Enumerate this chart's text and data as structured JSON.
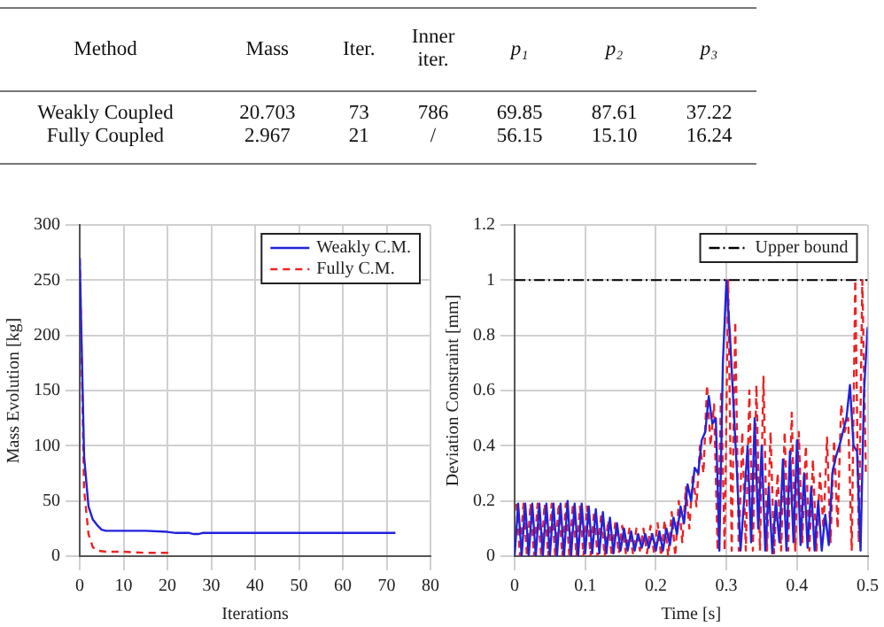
{
  "chart_data": [
    {
      "type": "other",
      "annotations": [
        "Method",
        "Mass",
        "Iter.",
        "Inner iter.",
        "p₁",
        "p₂",
        "p₃",
        "Weakly Coupled",
        "20.703",
        "73",
        "786",
        "69.85",
        "87.61",
        "37.22",
        "Fully Coupled",
        "2.967",
        "21",
        "/",
        "56.15",
        "15.10",
        "16.24"
      ]
    },
    {
      "type": "line",
      "xlabel": "Iterations",
      "ylabel": "Mass Evolution [kg]",
      "xlim": [
        0,
        80
      ],
      "ylim": [
        0,
        300
      ],
      "xticks": [
        0,
        10,
        20,
        30,
        40,
        50,
        60,
        70,
        80
      ],
      "yticks": [
        0,
        50,
        100,
        150,
        200,
        250,
        300
      ],
      "grid": true,
      "legend": "top right",
      "series": [
        {
          "name": "Weakly C.M.",
          "color": "#2222dd",
          "line_style": "solid",
          "x": [
            0,
            1,
            2,
            3,
            4,
            5,
            6,
            10,
            15,
            20,
            22,
            25,
            26,
            27,
            28,
            30,
            40,
            50,
            60,
            72
          ],
          "values": [
            270,
            90,
            45,
            33,
            28,
            24,
            23,
            23,
            23,
            22,
            21,
            21,
            20,
            20,
            21,
            21,
            21,
            21,
            21,
            21
          ]
        },
        {
          "name": "Fully C.M.",
          "color": "#ee2222",
          "line_style": "dashed",
          "x": [
            0,
            1,
            2,
            3,
            4,
            6,
            10,
            15,
            20,
            21
          ],
          "values": [
            270,
            60,
            20,
            8,
            5,
            4,
            4,
            3,
            3,
            3
          ]
        }
      ]
    },
    {
      "type": "line",
      "xlabel": "Time [s]",
      "ylabel": "Deviation Constraint [mm]",
      "xlim": [
        0,
        0.5
      ],
      "ylim": [
        0,
        1.2
      ],
      "xticks": [
        0,
        0.1,
        0.2,
        0.3,
        0.4,
        0.5
      ],
      "yticks": [
        0,
        0.2,
        0.4,
        0.6,
        0.8,
        1,
        1.2
      ],
      "grid": true,
      "legend": "top right",
      "ref_lines": [
        {
          "axis": "y",
          "value": 1,
          "label": "Upper bound",
          "color": "#000000",
          "line_style": "dashdot"
        }
      ],
      "series": [
        {
          "color": "#2222dd",
          "line_style": "solid",
          "x": [
            0,
            0.005,
            0.01,
            0.015,
            0.02,
            0.025,
            0.03,
            0.035,
            0.04,
            0.045,
            0.05,
            0.055,
            0.06,
            0.065,
            0.07,
            0.075,
            0.08,
            0.085,
            0.09,
            0.095,
            0.1,
            0.105,
            0.11,
            0.115,
            0.12,
            0.125,
            0.13,
            0.135,
            0.14,
            0.145,
            0.15,
            0.155,
            0.16,
            0.165,
            0.17,
            0.175,
            0.18,
            0.185,
            0.19,
            0.195,
            0.2,
            0.205,
            0.21,
            0.215,
            0.22,
            0.225,
            0.23,
            0.235,
            0.24,
            0.245,
            0.25,
            0.255,
            0.26,
            0.265,
            0.27,
            0.275,
            0.28,
            0.285,
            0.29,
            0.295,
            0.3,
            0.305,
            0.31,
            0.315,
            0.32,
            0.325,
            0.33,
            0.335,
            0.34,
            0.345,
            0.35,
            0.355,
            0.36,
            0.365,
            0.37,
            0.375,
            0.38,
            0.385,
            0.39,
            0.395,
            0.4,
            0.405,
            0.41,
            0.415,
            0.42,
            0.425,
            0.43,
            0.435,
            0.44,
            0.445,
            0.45,
            0.455,
            0.46,
            0.465,
            0.47,
            0.475,
            0.48,
            0.485,
            0.49,
            0.495,
            0.5
          ],
          "values": [
            0,
            0.19,
            0,
            0.19,
            0,
            0.19,
            0,
            0.19,
            0,
            0.19,
            0,
            0.19,
            0,
            0.19,
            0,
            0.2,
            0,
            0.19,
            0,
            0.19,
            0.01,
            0.18,
            0.01,
            0.17,
            0.01,
            0.16,
            0.01,
            0.14,
            0.01,
            0.12,
            0.02,
            0.1,
            0.02,
            0.09,
            0.02,
            0.08,
            0.03,
            0.08,
            0.03,
            0.08,
            0.02,
            0.09,
            0.02,
            0.1,
            0.04,
            0.14,
            0.08,
            0.18,
            0.12,
            0.26,
            0.2,
            0.32,
            0.3,
            0.42,
            0.45,
            0.58,
            0.48,
            0.5,
            0.02,
            0.7,
            1,
            0.8,
            0.55,
            0.3,
            0.02,
            0.2,
            0.4,
            0.05,
            0.5,
            0.1,
            0.4,
            0.02,
            0.25,
            0.01,
            0.2,
            0.05,
            0.35,
            0.02,
            0.38,
            0.05,
            0.42,
            0.04,
            0.3,
            0.03,
            0.25,
            0.02,
            0.2,
            0.02,
            0.15,
            0.04,
            0.3,
            0.36,
            0.4,
            0.45,
            0.5,
            0.62,
            0.4,
            0.38,
            0.02,
            0.6,
            0.83
          ]
        },
        {
          "color": "#ee2222",
          "line_style": "dashed",
          "x": [
            0.0025,
            0.0075,
            0.0125,
            0.0175,
            0.0225,
            0.0275,
            0.0325,
            0.0375,
            0.0425,
            0.0475,
            0.0525,
            0.0575,
            0.0625,
            0.0675,
            0.0725,
            0.0775,
            0.0825,
            0.0875,
            0.0925,
            0.0975,
            0.1025,
            0.1075,
            0.1125,
            0.1175,
            0.1225,
            0.1275,
            0.1325,
            0.1375,
            0.1425,
            0.1475,
            0.1525,
            0.1575,
            0.1625,
            0.1675,
            0.1725,
            0.1775,
            0.1825,
            0.1875,
            0.1925,
            0.1975,
            0.2025,
            0.2075,
            0.2125,
            0.2175,
            0.2225,
            0.2275,
            0.2325,
            0.2375,
            0.2425,
            0.2475,
            0.2525,
            0.2575,
            0.2625,
            0.2675,
            0.2725,
            0.2775,
            0.2825,
            0.2875,
            0.2925,
            0.2975,
            0.3025,
            0.3075,
            0.3125,
            0.3175,
            0.3225,
            0.3275,
            0.3325,
            0.3375,
            0.3425,
            0.3475,
            0.3525,
            0.3575,
            0.3625,
            0.3675,
            0.3725,
            0.3775,
            0.3825,
            0.3875,
            0.3925,
            0.3975,
            0.4025,
            0.4075,
            0.4125,
            0.4175,
            0.4225,
            0.4275,
            0.4325,
            0.4375,
            0.4425,
            0.4475,
            0.4525,
            0.4575,
            0.4625,
            0.4675,
            0.4725,
            0.4775,
            0.4825,
            0.4875,
            0.4925,
            0.4975
          ],
          "values": [
            0.19,
            0,
            0.19,
            0,
            0.19,
            0,
            0.19,
            0,
            0.19,
            0,
            0.19,
            0,
            0.19,
            0,
            0.19,
            0,
            0.19,
            0,
            0.18,
            0,
            0.18,
            0,
            0.16,
            0,
            0.15,
            0,
            0.13,
            0,
            0.12,
            0.01,
            0.11,
            0.01,
            0.1,
            0.01,
            0.1,
            0.02,
            0.1,
            0.01,
            0.11,
            0.01,
            0.12,
            0,
            0.13,
            0,
            0.16,
            0,
            0.2,
            0.05,
            0.25,
            0.1,
            0.3,
            0.18,
            0.4,
            0.3,
            0.62,
            0.4,
            0.55,
            0.02,
            0.6,
            0.02,
            1,
            0.02,
            0.85,
            0.02,
            0.45,
            0.02,
            0.6,
            0.02,
            0.62,
            0.02,
            0.65,
            0.02,
            0.45,
            0.01,
            0.3,
            0.02,
            0.45,
            0.02,
            0.52,
            0.02,
            0.45,
            0.05,
            0.4,
            0.02,
            0.35,
            0.02,
            0.3,
            0.1,
            0.43,
            0.05,
            0.42,
            0.1,
            0.55,
            0.45,
            0.5,
            0.02,
            1,
            0.05,
            1,
            0.3
          ]
        }
      ]
    }
  ]
}
